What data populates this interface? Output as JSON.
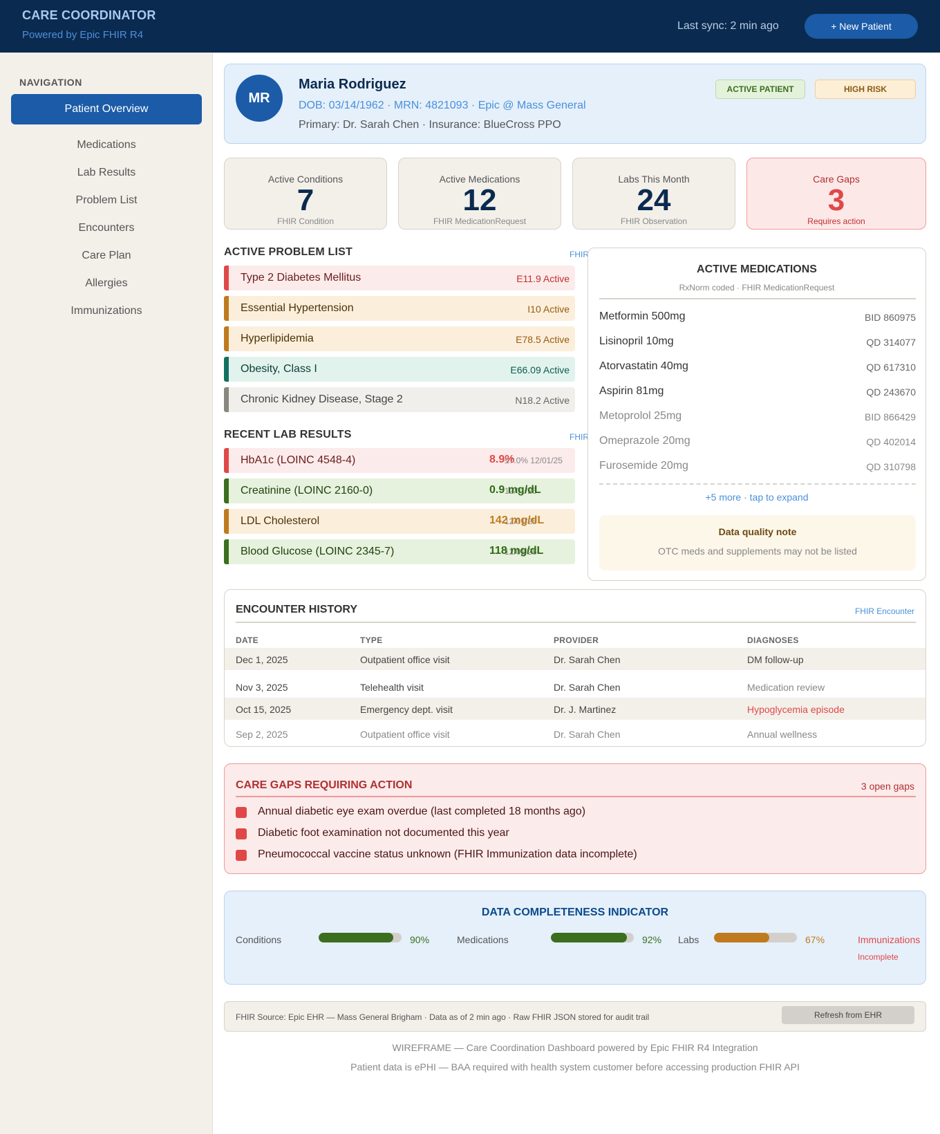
{
  "header": {
    "title": "CARE COORDINATOR",
    "subtitle": "Powered by Epic FHIR R4",
    "sync": "Last sync: 2 min ago",
    "new_patient": "+ New Patient"
  },
  "sidebar": {
    "heading": "NAVIGATION",
    "items": [
      {
        "label": "Patient Overview",
        "active": true
      },
      {
        "label": "Medications"
      },
      {
        "label": "Lab Results"
      },
      {
        "label": "Problem List"
      },
      {
        "label": "Encounters"
      },
      {
        "label": "Care Plan"
      },
      {
        "label": "Allergies"
      },
      {
        "label": "Immunizations"
      }
    ]
  },
  "patient": {
    "initials": "MR",
    "name": "Maria Rodriguez",
    "dob_line": "DOB: 03/14/1962 · MRN: 4821093 · Epic @ Mass General",
    "primary_line": "Primary: Dr. Sarah Chen · Insurance: BlueCross PPO",
    "badge_active": "ACTIVE PATIENT",
    "badge_risk": "HIGH RISK"
  },
  "stats": [
    {
      "label": "Active Conditions",
      "value": "7",
      "source": "FHIR Condition"
    },
    {
      "label": "Active Medications",
      "value": "12",
      "source": "FHIR MedicationRequest"
    },
    {
      "label": "Labs This Month",
      "value": "24",
      "source": "FHIR Observation"
    },
    {
      "label": "Care Gaps",
      "value": "3",
      "source": "Requires action"
    }
  ],
  "problems": {
    "title": "ACTIVE PROBLEM LIST",
    "fhir": "FHIR",
    "items": [
      {
        "name": "Type 2 Diabetes Mellitus",
        "code": "E11.9 Active"
      },
      {
        "name": "Essential Hypertension",
        "code": "I10 Active"
      },
      {
        "name": "Hyperlipidemia",
        "code": "E78.5 Active"
      },
      {
        "name": "Obesity, Class I",
        "code": "E66.09 Active"
      },
      {
        "name": "Chronic Kidney Disease, Stage 2",
        "code": "N18.2 Active"
      }
    ]
  },
  "labs": {
    "title": "RECENT LAB RESULTS",
    "fhir": "FHIR",
    "items": [
      {
        "name": "HbA1c (LOINC 4548-4)",
        "value": "8.9%",
        "ref": "≤7.0% 12/01/25"
      },
      {
        "name": "Creatinine (LOINC 2160-0)",
        "value": "0.9 mg/dL",
        "ref": "12/01/25"
      },
      {
        "name": "LDL Cholesterol",
        "value": "142 mg/dL",
        "ref": "12/01/25"
      },
      {
        "name": "Blood Glucose (LOINC 2345-7)",
        "value": "118 mg/dL",
        "ref": "12/01/25"
      }
    ]
  },
  "medications": {
    "title": "ACTIVE MEDICATIONS",
    "subtitle": "RxNorm coded · FHIR MedicationRequest",
    "items": [
      {
        "name": "Metformin 500mg",
        "code": "BID 860975"
      },
      {
        "name": "Lisinopril 10mg",
        "code": "QD 314077"
      },
      {
        "name": "Atorvastatin 40mg",
        "code": "QD 617310"
      },
      {
        "name": "Aspirin 81mg",
        "code": "QD 243670"
      },
      {
        "name": "Metoprolol 25mg",
        "code": "BID 866429"
      },
      {
        "name": "Omeprazole 20mg",
        "code": "QD 402014"
      },
      {
        "name": "Furosemide 20mg",
        "code": "QD 310798"
      }
    ],
    "more": "+5 more · tap to expand",
    "note_title": "Data quality note",
    "note_text": "OTC meds and supplements may not be listed"
  },
  "encounters": {
    "title": "ENCOUNTER HISTORY",
    "fhir": "FHIR Encounter",
    "headers": [
      "DATE",
      "TYPE",
      "PROVIDER",
      "DIAGNOSES"
    ],
    "rows": [
      {
        "date": "Dec 1, 2025",
        "type": "Outpatient office visit",
        "provider": "Dr. Sarah Chen",
        "diagnoses": "DM follow-up"
      },
      {
        "date": "Nov 3, 2025",
        "type": "Telehealth visit",
        "provider": "Dr. Sarah Chen",
        "diagnoses": "Medication review"
      },
      {
        "date": "Oct 15, 2025",
        "type": "Emergency dept. visit",
        "provider": "Dr. J. Martinez",
        "diagnoses": "Hypoglycemia episode"
      },
      {
        "date": "Sep 2, 2025",
        "type": "Outpatient office visit",
        "provider": "Dr. Sarah Chen",
        "diagnoses": "Annual wellness"
      }
    ]
  },
  "care_gaps": {
    "title": "CARE GAPS REQUIRING ACTION",
    "count": "3 open gaps",
    "items": [
      "Annual diabetic eye exam overdue (last completed 18 months ago)",
      "Diabetic foot examination not documented this year",
      "Pneumococcal vaccine status unknown (FHIR Immunization data incomplete)"
    ]
  },
  "completeness": {
    "title": "DATA COMPLETENESS INDICATOR",
    "items": [
      {
        "label": "Conditions",
        "percent": 90,
        "text": "90%"
      },
      {
        "label": "Medications",
        "percent": 92,
        "text": "92%"
      },
      {
        "label": "Labs",
        "percent": 67,
        "text": "67%"
      }
    ],
    "incomplete_label": "Immunizations",
    "incomplete_note": "Incomplete",
    "colors": {
      "good": "#3b6e1e",
      "warn": "#c07a1e"
    }
  },
  "source_bar": {
    "text": "FHIR Source: Epic EHR — Mass General Brigham · Data as of 2 min ago · Raw FHIR JSON stored for audit trail",
    "refresh": "Refresh from EHR"
  },
  "footer": {
    "line1": "WIREFRAME — Care Coordination Dashboard powered by Epic FHIR R4 Integration",
    "line2": "Patient data is ePHI — BAA required with health system customer before accessing production FHIR API"
  }
}
